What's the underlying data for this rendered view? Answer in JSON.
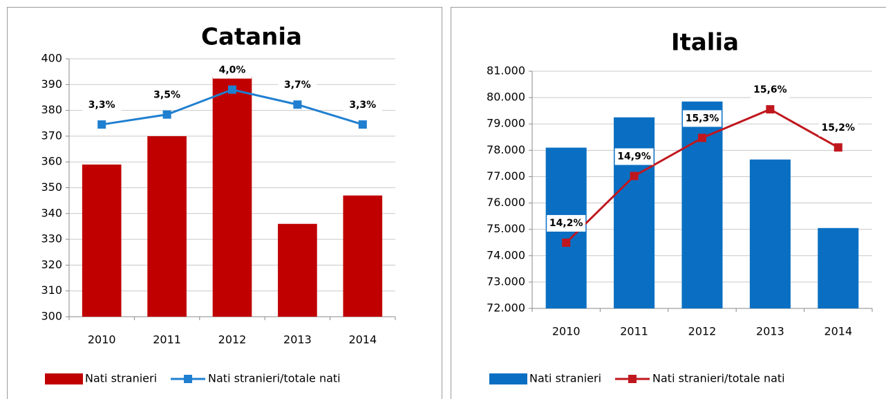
{
  "chart_data": [
    {
      "type": "bar",
      "title": "Catania",
      "categories": [
        "2010",
        "2011",
        "2012",
        "2013",
        "2014"
      ],
      "series": [
        {
          "name": "Nati stranieri",
          "color": "#c00000",
          "values": [
            359,
            370,
            393,
            336,
            347
          ]
        },
        {
          "name": "Nati stranieri/totale nati",
          "color": "#1f7fd0",
          "axis": "y2",
          "values": [
            3.3,
            3.5,
            4.0,
            3.7,
            3.3
          ],
          "value_labels": [
            "3,3%",
            "3,5%",
            "4,0%",
            "3,7%",
            "3,3%"
          ]
        }
      ],
      "ylim": [
        300,
        400
      ],
      "yticks": [
        300,
        310,
        320,
        330,
        340,
        350,
        360,
        370,
        380,
        390,
        400
      ],
      "y2lim": [
        -0.56,
        4.62
      ],
      "grid": true,
      "legend": "bottom"
    },
    {
      "type": "bar",
      "title": "Italia",
      "categories": [
        "2010",
        "2011",
        "2012",
        "2013",
        "2014"
      ],
      "series": [
        {
          "name": "Nati stranieri",
          "color": "#0a6fc2",
          "values": [
            78100,
            79250,
            79850,
            77650,
            75050
          ]
        },
        {
          "name": "Nati stranieri/totale nati",
          "color": "#c0171e",
          "axis": "y2",
          "values": [
            14.2,
            14.9,
            15.3,
            15.6,
            15.2
          ],
          "value_labels": [
            "14,2%",
            "14,9%",
            "15,3%",
            "15,6%",
            "15,2%"
          ]
        }
      ],
      "ylim": [
        72000,
        81000
      ],
      "yticks": [
        {
          "value": 72000,
          "label": "72.000"
        },
        {
          "value": 73000,
          "label": "73.000"
        },
        {
          "value": 74000,
          "label": "74.000"
        },
        {
          "value": 75000,
          "label": "75.000"
        },
        {
          "value": 76000,
          "label": "76.000"
        },
        {
          "value": 77000,
          "label": "77.000"
        },
        {
          "value": 78000,
          "label": "78.000"
        },
        {
          "value": 79000,
          "label": "79.000"
        },
        {
          "value": 80000,
          "label": "80.000"
        },
        {
          "value": 81000,
          "label": "81.000"
        }
      ],
      "y2lim": [
        13.51,
        16.0
      ],
      "grid": true,
      "legend": "bottom"
    }
  ]
}
